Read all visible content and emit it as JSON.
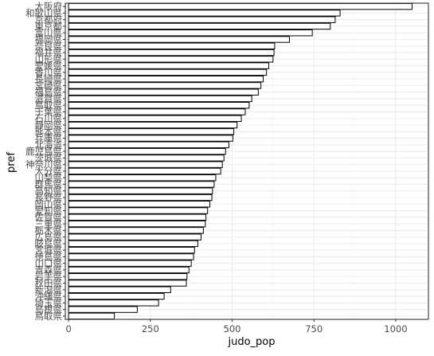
{
  "chart_data": {
    "type": "bar",
    "orientation": "horizontal",
    "title": "",
    "xlabel": "judo_pop",
    "ylabel": "pref",
    "xlim": [
      -10,
      1100
    ],
    "x_ticks": [
      0,
      250,
      500,
      750,
      1000
    ],
    "x_tick_labels": [
      "0",
      "250",
      "500",
      "750",
      "1000"
    ],
    "grid": true,
    "legend": "none",
    "categories": [
      "大阪府",
      "和歌山県",
      "京都府",
      "東京都",
      "富山県",
      "福岡県",
      "奈良県",
      "福井県",
      "山形県",
      "愛媛県",
      "香川県",
      "長崎県",
      "宮崎県",
      "福島県",
      "滋賀県",
      "鳥取県",
      "千葉県",
      "石川県",
      "静岡県",
      "熊本県",
      "兵庫県",
      "北海道",
      "鹿児島県",
      "茨城県",
      "神奈川県",
      "大分県",
      "山梨県",
      "群馬県",
      "高知県",
      "長野県",
      "岡山県",
      "愛知県",
      "佐賀県",
      "三重県",
      "栃木県",
      "広島県",
      "岐阜県",
      "宮城県",
      "徳島県",
      "山口県",
      "青森県",
      "岩手県",
      "秋田県",
      "新潟県",
      "沖縄県",
      "埼玉県",
      "島根県",
      "鳥取県"
    ],
    "values": [
      1050,
      830,
      815,
      800,
      745,
      675,
      630,
      628,
      625,
      612,
      605,
      595,
      588,
      580,
      560,
      552,
      540,
      528,
      515,
      505,
      502,
      490,
      480,
      475,
      470,
      465,
      450,
      445,
      440,
      438,
      432,
      425,
      420,
      418,
      412,
      405,
      395,
      385,
      382,
      375,
      368,
      362,
      360,
      312,
      292,
      275,
      210,
      140
    ],
    "bar_fill": "#ffffff",
    "bar_stroke": "#000000",
    "panel_border": "#333333",
    "grid_major": "#ebebeb",
    "grid_minor": "#f3f3f3"
  }
}
